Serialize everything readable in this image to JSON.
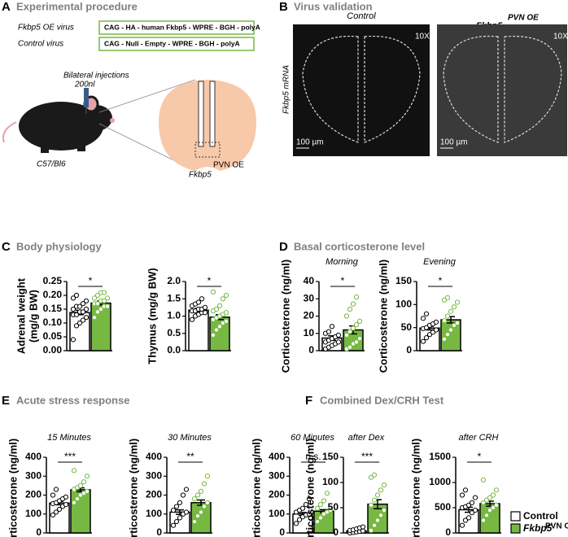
{
  "panels": {
    "A": {
      "letter": "A",
      "title": "Experimental procedure",
      "oe_virus": "Fkbp5 OE virus",
      "oe_construct": "CAG - HA - human Fkbp5 - WPRE - BGH - polyA",
      "control_virus": "Control virus",
      "control_construct": "CAG - Null - Empty - WPRE - BGH - polyA",
      "injection": "Bilateral injections",
      "volume": "200nl",
      "strain": "C57/Bl6",
      "gene": "Fkbp5",
      "region": "PVN OE"
    },
    "B": {
      "letter": "B",
      "title": "Virus validation",
      "left_label": "Control",
      "right_label": "Fkbp5",
      "right_sup": "PVN OE",
      "ylabel": "Fkbp5 mRNA",
      "magnification": "10X",
      "scale": "100 µm"
    },
    "C": {
      "letter": "C",
      "title": "Body physiology"
    },
    "D": {
      "letter": "D",
      "title": "Basal corticosterone level"
    },
    "E": {
      "letter": "E",
      "title": "Acute stress response"
    },
    "F": {
      "letter": "F",
      "title": "Combined Dex/CRH Test"
    }
  },
  "legend": [
    {
      "label": "Control",
      "color": "#ffffff"
    },
    {
      "label": "Fkbp5",
      "sup": "PVN OE",
      "color": "#77b843"
    }
  ],
  "chart_data": [
    {
      "type": "bar",
      "ylabel": [
        "Adrenal weight",
        "(mg/g BW)"
      ],
      "ylim": [
        0,
        0.25
      ],
      "yticks": [
        {
          "value": 0,
          "label": "0.00"
        },
        {
          "value": 0.05,
          "label": "0.05"
        },
        {
          "value": 0.1,
          "label": "0.10"
        },
        {
          "value": 0.15,
          "label": "0.15"
        },
        {
          "value": 0.2,
          "label": "0.20"
        },
        {
          "value": 0.25,
          "label": "0.25"
        }
      ],
      "colors": [
        "#ffffff",
        "#77b843"
      ],
      "values": [
        0.138,
        0.172
      ],
      "errors": [
        0.008,
        0.007
      ],
      "points": [
        [
          0.04,
          0.09,
          0.1,
          0.11,
          0.12,
          0.13,
          0.13,
          0.14,
          0.14,
          0.15,
          0.15,
          0.16,
          0.16,
          0.17,
          0.18,
          0.19,
          0.2
        ],
        [
          0.12,
          0.14,
          0.15,
          0.16,
          0.16,
          0.17,
          0.17,
          0.18,
          0.18,
          0.19,
          0.19,
          0.2,
          0.21,
          0.21
        ]
      ],
      "significance": "*"
    },
    {
      "type": "bar",
      "ylabel": [
        "Thymus (mg/g BW)"
      ],
      "ylim": [
        0,
        2
      ],
      "yticks": [
        {
          "value": 0,
          "label": "0.0"
        },
        {
          "value": 0.5,
          "label": "0.5"
        },
        {
          "value": 1,
          "label": "1.0"
        },
        {
          "value": 1.5,
          "label": "1.5"
        },
        {
          "value": 2,
          "label": "2.0"
        }
      ],
      "colors": [
        "#ffffff",
        "#77b843"
      ],
      "values": [
        1.17,
        0.97
      ],
      "errors": [
        0.05,
        0.07
      ],
      "points": [
        [
          0.9,
          1.0,
          1.05,
          1.1,
          1.1,
          1.15,
          1.15,
          1.2,
          1.2,
          1.25,
          1.3,
          1.35,
          1.4,
          1.5
        ],
        [
          0.45,
          0.6,
          0.7,
          0.8,
          0.85,
          0.9,
          0.95,
          1.0,
          1.05,
          1.1,
          1.15,
          1.2,
          1.3,
          1.5,
          1.6,
          1.7
        ]
      ],
      "significance": "*"
    },
    {
      "type": "bar",
      "subtitle": "Morning",
      "ylabel": [
        "Corticosterone (ng/ml)"
      ],
      "ylim": [
        0,
        40
      ],
      "yticks": [
        0,
        10,
        20,
        30,
        40
      ],
      "colors": [
        "#ffffff",
        "#77b843"
      ],
      "values": [
        7.3,
        12
      ],
      "errors": [
        1.3,
        2.3
      ],
      "points": [
        [
          1,
          2,
          3,
          4,
          5,
          5,
          6,
          7,
          8,
          9,
          10,
          11,
          14
        ],
        [
          1,
          2,
          4,
          5,
          7,
          9,
          11,
          13,
          15,
          17,
          20,
          24,
          27,
          31
        ]
      ],
      "significance": "*"
    },
    {
      "type": "bar",
      "subtitle": "Evening",
      "ylabel": [
        "Corticosterone (ng/ml)"
      ],
      "ylim": [
        0,
        150
      ],
      "yticks": [
        0,
        50,
        100,
        150
      ],
      "colors": [
        "#ffffff",
        "#77b843"
      ],
      "values": [
        49,
        67
      ],
      "errors": [
        4,
        7
      ],
      "points": [
        [
          20,
          28,
          35,
          40,
          45,
          48,
          50,
          55,
          58,
          62,
          70,
          80
        ],
        [
          25,
          35,
          45,
          55,
          60,
          65,
          75,
          85,
          95,
          105,
          110,
          115
        ]
      ],
      "significance": "*"
    },
    {
      "type": "bar",
      "subtitle": "15 Minutes",
      "ylabel": [
        "Corticosterone (ng/ml)"
      ],
      "ylim": [
        0,
        400
      ],
      "yticks": [
        0,
        100,
        200,
        300,
        400
      ],
      "colors": [
        "#ffffff",
        "#77b843"
      ],
      "values": [
        158,
        228
      ],
      "errors": [
        9,
        10
      ],
      "points": [
        [
          95,
          110,
          125,
          140,
          150,
          155,
          160,
          170,
          180,
          190,
          200,
          230
        ],
        [
          160,
          180,
          200,
          210,
          220,
          230,
          240,
          250,
          270,
          300,
          330
        ]
      ],
      "significance": "***"
    },
    {
      "type": "bar",
      "subtitle": "30 Minutes",
      "ylabel": [
        "Corticosterone (ng/ml)"
      ],
      "ylim": [
        0,
        400
      ],
      "yticks": [
        0,
        100,
        200,
        300,
        400
      ],
      "colors": [
        "#ffffff",
        "#77b843"
      ],
      "values": [
        110,
        160
      ],
      "errors": [
        12,
        14
      ],
      "points": [
        [
          40,
          60,
          80,
          100,
          110,
          120,
          140,
          160,
          200,
          230
        ],
        [
          60,
          90,
          110,
          140,
          160,
          180,
          200,
          220,
          260,
          300
        ]
      ],
      "significance": "**"
    },
    {
      "type": "bar",
      "subtitle": "60 Minutes",
      "ylabel": [
        "Corticosterone (ng/ml)"
      ],
      "ylim": [
        0,
        400
      ],
      "yticks": [
        0,
        100,
        200,
        300,
        400
      ],
      "colors": [
        "#ffffff",
        "#77b843"
      ],
      "values": [
        100,
        115
      ],
      "errors": [
        8,
        8
      ],
      "points": [
        [
          50,
          70,
          85,
          95,
          100,
          110,
          120,
          130,
          150,
          180
        ],
        [
          60,
          80,
          100,
          110,
          120,
          130,
          150,
          170,
          210
        ]
      ],
      "significance": "n.s."
    },
    {
      "type": "bar",
      "subtitle": "after Dex",
      "ylabel": [
        "Corticosterone (ng/ml)"
      ],
      "ylim": [
        0,
        150
      ],
      "yticks": [
        0,
        50,
        100,
        150
      ],
      "colors": [
        "#ffffff",
        "#77b843"
      ],
      "values": [
        4,
        57
      ],
      "errors": [
        1,
        9
      ],
      "points": [
        [
          0,
          1,
          2,
          3,
          4,
          5,
          6,
          8,
          10,
          12
        ],
        [
          5,
          15,
          25,
          35,
          45,
          55,
          65,
          75,
          85,
          95,
          110,
          115
        ]
      ],
      "significance": "***"
    },
    {
      "type": "bar",
      "subtitle": "after CRH",
      "ylabel": [
        "Corticosterone (ng/ml)"
      ],
      "ylim": [
        0,
        1500
      ],
      "yticks": [
        0,
        500,
        1000,
        1500
      ],
      "colors": [
        "#ffffff",
        "#77b843"
      ],
      "values": [
        460,
        580
      ],
      "errors": [
        50,
        50
      ],
      "points": [
        [
          150,
          250,
          300,
          400,
          450,
          500,
          520,
          550,
          600,
          700,
          750,
          850
        ],
        [
          250,
          350,
          450,
          500,
          550,
          600,
          650,
          700,
          750,
          850,
          1050
        ]
      ],
      "significance": "*"
    }
  ]
}
